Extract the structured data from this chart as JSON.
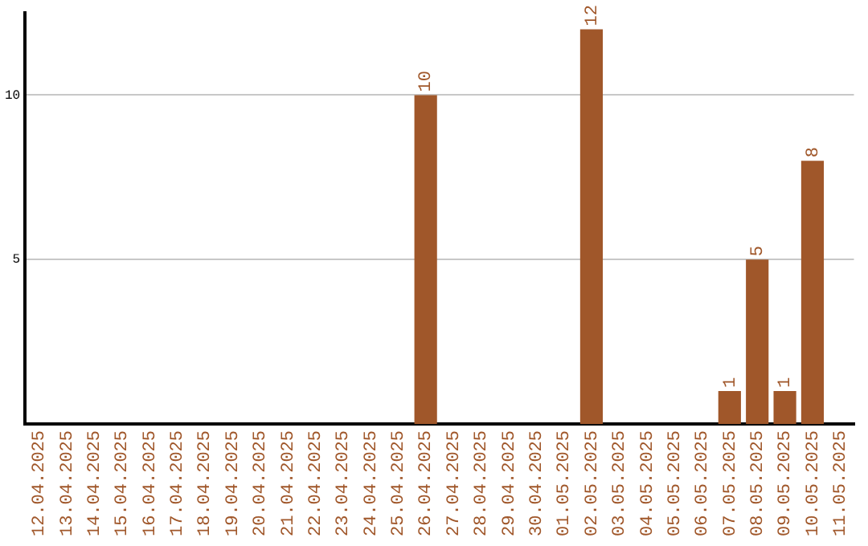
{
  "chart_data": {
    "type": "bar",
    "categories": [
      "12.04.2025",
      "13.04.2025",
      "14.04.2025",
      "15.04.2025",
      "16.04.2025",
      "17.04.2025",
      "18.04.2025",
      "19.04.2025",
      "20.04.2025",
      "21.04.2025",
      "22.04.2025",
      "23.04.2025",
      "24.04.2025",
      "25.04.2025",
      "26.04.2025",
      "27.04.2025",
      "28.04.2025",
      "29.04.2025",
      "30.04.2025",
      "01.05.2025",
      "02.05.2025",
      "03.05.2025",
      "04.05.2025",
      "05.05.2025",
      "06.05.2025",
      "07.05.2025",
      "08.05.2025",
      "09.05.2025",
      "10.05.2025",
      "11.05.2025"
    ],
    "values": [
      0,
      0,
      0,
      0,
      0,
      0,
      0,
      0,
      0,
      0,
      0,
      0,
      0,
      0,
      10,
      0,
      0,
      0,
      0,
      0,
      12,
      0,
      0,
      0,
      0,
      1,
      5,
      1,
      8,
      0
    ],
    "value_labels": [
      null,
      null,
      null,
      null,
      null,
      null,
      null,
      null,
      null,
      null,
      null,
      null,
      null,
      null,
      "10",
      null,
      null,
      null,
      null,
      null,
      "12",
      null,
      null,
      null,
      null,
      "1",
      "5",
      "1",
      "8",
      null
    ],
    "color": "#a0572a",
    "ylim": [
      0,
      12.5
    ],
    "yticks": [
      5,
      10
    ],
    "grid": "y",
    "legend": false
  }
}
